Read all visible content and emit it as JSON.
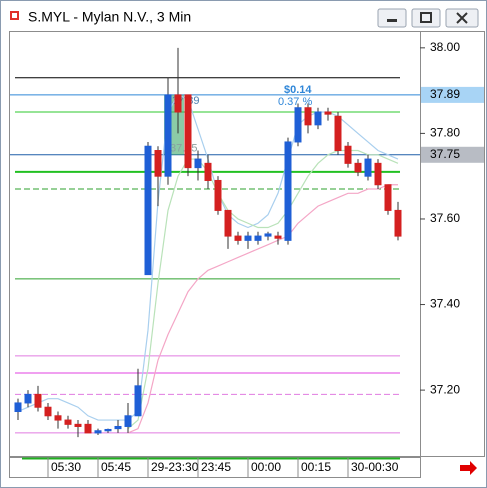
{
  "window": {
    "title": "S.MYL - Mylan N.V., 3 Min"
  },
  "chart_data": {
    "type": "candlestick",
    "categories": [
      null,
      null,
      null,
      "05:30",
      null,
      null,
      null,
      null,
      "05:45",
      null,
      null,
      null,
      null,
      "29-23:30",
      null,
      null,
      null,
      null,
      "23:45",
      null,
      null,
      null,
      null,
      "00:00",
      null,
      null,
      null,
      null,
      "00:15",
      null,
      null,
      null,
      null,
      "30-00:30",
      null,
      null,
      null,
      null,
      null
    ],
    "open": [
      37.15,
      37.17,
      37.19,
      37.16,
      37.14,
      37.13,
      37.12,
      37.12,
      37.1,
      37.105,
      37.11,
      37.115,
      37.14,
      37.47,
      37.76,
      37.7,
      37.89,
      37.89,
      37.72,
      37.73,
      37.69,
      37.62,
      37.56,
      37.55,
      37.55,
      37.56,
      37.56,
      37.55,
      37.78,
      37.86,
      37.82,
      37.85,
      37.84,
      37.77,
      37.73,
      37.7,
      37.73,
      37.68,
      37.62
    ],
    "high": [
      37.18,
      37.2,
      37.21,
      37.17,
      37.15,
      37.14,
      37.13,
      37.13,
      37.11,
      37.11,
      37.13,
      37.17,
      37.25,
      37.78,
      37.77,
      37.93,
      38.0,
      37.89,
      37.76,
      37.75,
      37.7,
      37.62,
      37.57,
      37.57,
      37.57,
      37.57,
      37.57,
      37.79,
      37.87,
      37.87,
      37.86,
      37.86,
      37.85,
      37.78,
      37.74,
      37.75,
      37.74,
      37.68,
      37.64
    ],
    "low": [
      37.13,
      37.16,
      37.15,
      37.13,
      37.11,
      37.11,
      37.09,
      37.1,
      37.095,
      37.1,
      37.1,
      37.1,
      37.14,
      37.47,
      37.63,
      37.68,
      37.8,
      37.7,
      37.69,
      37.67,
      37.61,
      37.53,
      37.54,
      37.53,
      37.54,
      37.55,
      37.54,
      37.54,
      37.77,
      37.8,
      37.81,
      37.83,
      37.75,
      37.72,
      37.7,
      37.69,
      37.67,
      37.61,
      37.55
    ],
    "close": [
      37.17,
      37.19,
      37.16,
      37.14,
      37.13,
      37.12,
      37.115,
      37.1,
      37.105,
      37.108,
      37.115,
      37.14,
      37.21,
      37.77,
      37.7,
      37.89,
      37.85,
      37.72,
      37.74,
      37.69,
      37.62,
      37.56,
      37.55,
      37.56,
      37.56,
      37.565,
      37.555,
      37.78,
      37.86,
      37.82,
      37.85,
      37.845,
      37.76,
      37.73,
      37.71,
      37.74,
      37.68,
      37.62,
      37.56
    ],
    "up_color": "#1f5fd6",
    "down_color": "#d42020",
    "series": [
      {
        "color": "#a9cfee",
        "values": [
          37.15,
          37.16,
          37.17,
          37.18,
          37.18,
          37.17,
          37.16,
          37.14,
          37.13,
          37.13,
          37.13,
          37.13,
          37.15,
          37.34,
          37.64,
          37.85,
          37.89,
          37.88,
          37.81,
          37.74,
          37.66,
          37.61,
          37.59,
          37.58,
          37.59,
          37.61,
          37.66,
          37.74,
          37.82,
          37.84,
          37.85,
          37.85,
          37.84,
          37.82,
          37.8,
          37.78,
          37.76,
          37.75,
          37.74
        ]
      },
      {
        "color": "#b9e2b9",
        "values": [
          null,
          null,
          null,
          null,
          null,
          null,
          null,
          null,
          null,
          null,
          null,
          37.11,
          37.13,
          37.25,
          37.45,
          37.62,
          37.7,
          37.74,
          37.74,
          37.71,
          37.66,
          37.62,
          37.6,
          37.59,
          37.58,
          37.58,
          37.59,
          37.62,
          37.66,
          37.7,
          37.73,
          37.75,
          37.76,
          37.76,
          37.76,
          37.75,
          37.75,
          37.74,
          37.73
        ]
      },
      {
        "color": "#f4a6c6",
        "values": [
          null,
          null,
          null,
          null,
          null,
          null,
          null,
          null,
          null,
          null,
          null,
          37.1,
          37.11,
          37.17,
          37.27,
          37.33,
          37.38,
          37.43,
          37.46,
          37.48,
          37.49,
          37.5,
          37.51,
          37.52,
          37.53,
          37.54,
          37.55,
          37.56,
          37.59,
          37.61,
          37.63,
          37.64,
          37.65,
          37.66,
          37.66,
          37.67,
          37.67,
          37.68,
          37.68
        ]
      }
    ],
    "levels": [
      {
        "value": 37.93,
        "color": "#000000",
        "width": 1,
        "dashed": false
      },
      {
        "value": 37.85,
        "color": "#2ec82e",
        "width": 1,
        "dashed": false
      },
      {
        "value": 37.71,
        "color": "#22c022",
        "width": 2,
        "dashed": false
      },
      {
        "value": 37.67,
        "color": "#2ea02e",
        "width": 1,
        "dashed": true
      },
      {
        "value": 37.46,
        "color": "#2ea02e",
        "width": 1,
        "dashed": false
      },
      {
        "value": 37.28,
        "color": "#e07be0",
        "width": 1,
        "dashed": false
      },
      {
        "value": 37.24,
        "color": "#e040e0",
        "width": 1,
        "dashed": false
      },
      {
        "value": 37.19,
        "color": "#e07be0",
        "width": 1,
        "dashed": true
      },
      {
        "value": 37.1,
        "color": "#e07be0",
        "width": 1,
        "dashed": false
      }
    ],
    "price_markers": [
      {
        "value": 37.89,
        "color": "#a8d4f5",
        "line_color": "#2f86d8"
      },
      {
        "value": 37.75,
        "color": "#b8bcc4",
        "line_color": "#1f5fa8"
      }
    ],
    "annotations": [
      "$0.14",
      "0.37 %"
    ],
    "ylim": [
      37.046,
      38.037
    ],
    "yticks": [
      {
        "value": 37.2,
        "label": "37.20"
      },
      {
        "value": 37.4,
        "label": "37.40"
      },
      {
        "value": 37.6,
        "label": "37.60"
      },
      {
        "value": 37.8,
        "label": "37.80"
      },
      {
        "value": 38.0,
        "label": "38.00"
      }
    ]
  }
}
